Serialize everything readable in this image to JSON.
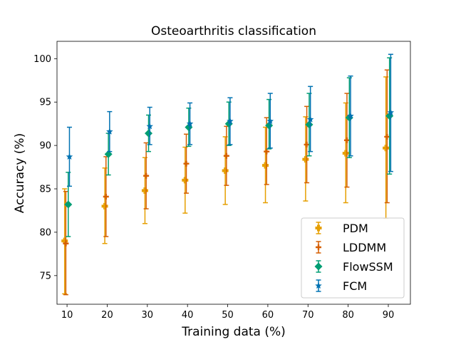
{
  "chart_data": {
    "type": "scatter",
    "title": "Osteoarthritis classification",
    "xlabel": "Training data (%)",
    "ylabel": "Accuracy (%)",
    "xlim": [
      7.5,
      95.5
    ],
    "ylim": [
      71.7,
      102
    ],
    "x": [
      10,
      20,
      30,
      40,
      50,
      60,
      70,
      80,
      90
    ],
    "xticks": [
      10,
      20,
      30,
      40,
      50,
      60,
      70,
      80,
      90
    ],
    "yticks": [
      75,
      80,
      85,
      90,
      95,
      100
    ],
    "grid": false,
    "legend_position": "lower-right",
    "series": [
      {
        "name": "PDM",
        "color": "#E69F00",
        "marker": "plus-filled",
        "x_offset": -0.6,
        "values": [
          79.0,
          83.0,
          84.8,
          86.0,
          87.1,
          87.7,
          88.4,
          89.1,
          89.7
        ],
        "err_low": [
          72.9,
          78.7,
          81.0,
          82.2,
          83.2,
          83.4,
          83.6,
          83.4,
          81.6
        ],
        "err_high": [
          85.0,
          87.4,
          88.6,
          89.8,
          91.0,
          92.1,
          93.3,
          94.9,
          97.9
        ]
      },
      {
        "name": "LDDMM",
        "color": "#D55E00",
        "marker": "plus",
        "x_offset": -0.3,
        "values": [
          78.7,
          84.1,
          86.5,
          87.9,
          88.8,
          89.3,
          90.1,
          90.6,
          91.0
        ],
        "err_low": [
          72.8,
          79.5,
          82.7,
          84.5,
          85.4,
          85.5,
          85.7,
          85.2,
          83.4
        ],
        "err_high": [
          84.7,
          88.7,
          90.3,
          91.3,
          92.2,
          93.2,
          94.5,
          96.0,
          98.7
        ]
      },
      {
        "name": "FlowSSM",
        "color": "#009E73",
        "marker": "diamond",
        "x_offset": 0.3,
        "values": [
          83.2,
          89.0,
          91.4,
          92.1,
          92.5,
          92.3,
          92.4,
          93.2,
          93.4
        ],
        "err_low": [
          79.5,
          86.6,
          89.3,
          89.9,
          90.0,
          89.6,
          88.8,
          88.6,
          86.7
        ],
        "err_high": [
          86.9,
          91.4,
          93.5,
          94.3,
          95.0,
          95.3,
          96.0,
          97.8,
          100.1
        ]
      },
      {
        "name": "FCM",
        "color": "#0072B2",
        "marker": "star",
        "x_offset": 0.6,
        "values": [
          88.7,
          91.6,
          92.2,
          92.5,
          92.8,
          92.8,
          93.0,
          93.4,
          93.8
        ],
        "err_low": [
          85.3,
          89.3,
          90.1,
          90.1,
          90.1,
          89.7,
          89.3,
          88.8,
          87.0
        ],
        "err_high": [
          92.1,
          93.9,
          94.4,
          94.9,
          95.5,
          96.0,
          96.8,
          98.0,
          100.5
        ]
      }
    ]
  }
}
